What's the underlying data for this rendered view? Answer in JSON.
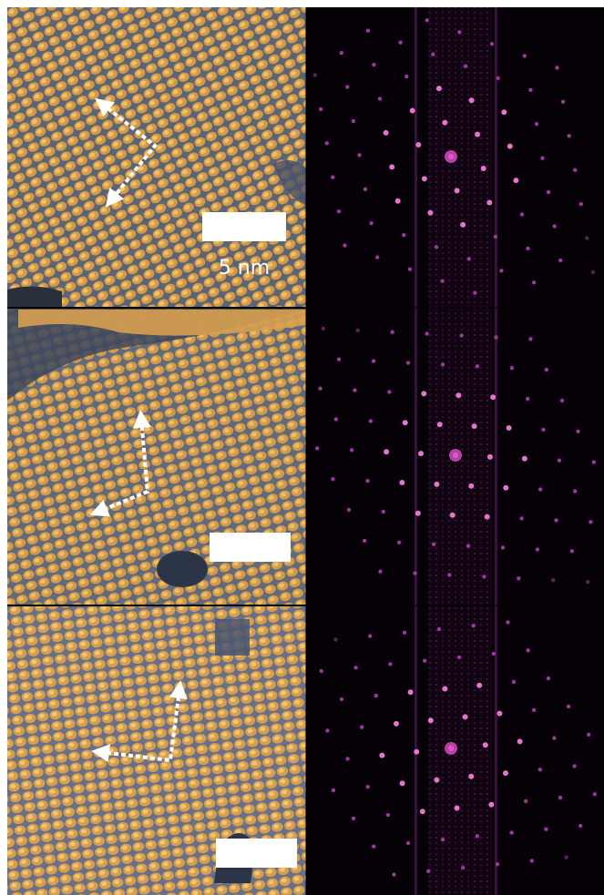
{
  "scale_bar": {
    "label": "5 nm"
  }
}
